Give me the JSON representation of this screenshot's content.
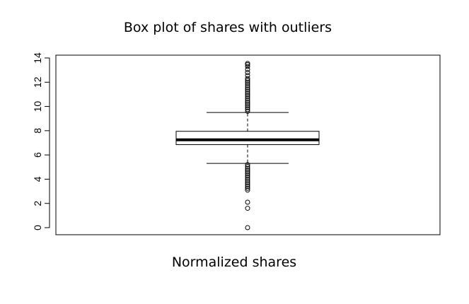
{
  "chart_data": {
    "type": "box",
    "title": "Box plot of shares with outliers",
    "xlabel": "Normalized shares",
    "ylabel": "",
    "ylim": [
      0,
      14
    ],
    "yticks": [
      0,
      2,
      4,
      6,
      8,
      10,
      12,
      14
    ],
    "grid": false,
    "legend": "none",
    "box": {
      "lower_whisker": 5.3,
      "q1": 6.85,
      "median": 7.25,
      "q3": 7.95,
      "upper_whisker": 9.5
    },
    "outliers": [
      0.0,
      1.6,
      2.1,
      3.1,
      3.25,
      3.4,
      3.55,
      3.7,
      3.85,
      4.0,
      4.15,
      4.3,
      4.45,
      4.6,
      4.75,
      4.9,
      5.05,
      5.2,
      9.6,
      9.75,
      9.9,
      10.05,
      10.2,
      10.35,
      10.5,
      10.65,
      10.8,
      10.95,
      11.1,
      11.25,
      11.4,
      11.55,
      11.7,
      11.85,
      12.0,
      12.15,
      12.3,
      12.55,
      12.8,
      13.05,
      13.3,
      13.45,
      13.55
    ],
    "colors": {
      "box_fill": "#ffffff",
      "stroke": "#000000"
    }
  }
}
